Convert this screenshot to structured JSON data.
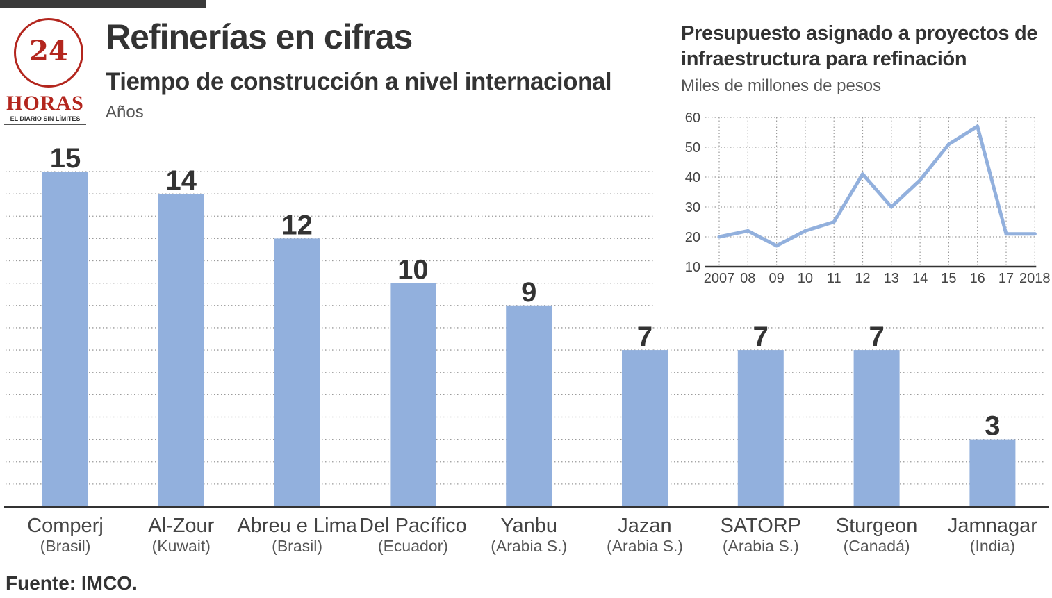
{
  "brand": {
    "logo_number": "24",
    "logo_name": "HORAS",
    "tagline": "EL DIARIO SIN LÍMITES"
  },
  "header": {
    "title": "Refinerías en cifras",
    "subtitle": "Tiempo de construcción a nivel internacional",
    "unit": "Años"
  },
  "footer": {
    "source": "Fuente: IMCO."
  },
  "colors": {
    "bar": "#92b0dd",
    "line": "#92b0dd",
    "text": "#333333",
    "brand_red": "#b3261e"
  },
  "chart_data": [
    {
      "type": "bar",
      "title": "Tiempo de construcción a nivel internacional",
      "ylabel": "Años",
      "categories": [
        "Comperj",
        "Al-Zour",
        "Abreu e Lima",
        "Del Pacífico",
        "Yanbu",
        "Jazan",
        "SATORP",
        "Sturgeon",
        "Jamnagar"
      ],
      "countries": [
        "(Brasil)",
        "(Kuwait)",
        "(Brasil)",
        "(Ecuador)",
        "(Arabia S.)",
        "(Arabia S.)",
        "(Arabia S.)",
        "(Canadá)",
        "(India)"
      ],
      "values": [
        15,
        14,
        12,
        10,
        9,
        7,
        7,
        7,
        3
      ],
      "ylim": [
        0,
        15
      ],
      "grid": true
    },
    {
      "type": "line",
      "title": "Presupuesto asignado a proyectos de infraestructura para refinación",
      "ylabel": "Miles de millones de pesos",
      "x": [
        "2007",
        "08",
        "09",
        "10",
        "11",
        "12",
        "13",
        "14",
        "15",
        "16",
        "17",
        "2018"
      ],
      "values": [
        20,
        22,
        17,
        22,
        25,
        41,
        30,
        39,
        51,
        57,
        21,
        21
      ],
      "yticks": [
        10,
        20,
        30,
        40,
        50,
        60
      ],
      "ylim": [
        10,
        60
      ],
      "grid": true
    }
  ]
}
